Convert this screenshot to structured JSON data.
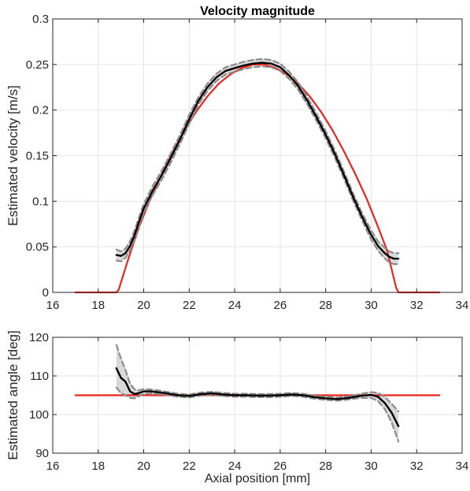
{
  "chart_data": [
    {
      "type": "line",
      "title": "Velocity magnitude",
      "xlabel": "",
      "ylabel": "Estimated velocity [m/s]",
      "xlim": [
        16,
        34
      ],
      "ylim": [
        0,
        0.3
      ],
      "xticks": [
        16,
        18,
        20,
        22,
        24,
        26,
        28,
        30,
        32,
        34
      ],
      "yticks": [
        0,
        0.05,
        0.1,
        0.15,
        0.2,
        0.25,
        0.3
      ],
      "xtick_labels": [
        "16",
        "18",
        "20",
        "22",
        "24",
        "26",
        "28",
        "30",
        "32",
        "34"
      ],
      "ytick_labels": [
        "0",
        "0.05",
        "0.1",
        "0.15",
        "0.2",
        "0.25",
        "0.3"
      ],
      "grid": true,
      "colors": {
        "reference": "#e8251e",
        "estimate": "#000000",
        "bounds": "#8c8c8c",
        "band": "#d9d9d9"
      },
      "series": [
        {
          "role": "reference",
          "x": [
            17,
            18.8,
            18.9,
            19.3,
            19.8,
            20.3,
            20.8,
            21.3,
            21.8,
            22.3,
            22.8,
            23.3,
            23.8,
            24.3,
            24.8,
            25.3,
            25.8,
            26.3,
            26.8,
            27.3,
            27.8,
            28.3,
            28.8,
            29.3,
            29.8,
            30.3,
            30.7,
            31.1,
            31.2,
            33
          ],
          "y": [
            0,
            0,
            0.003,
            0.035,
            0.072,
            0.103,
            0.13,
            0.155,
            0.178,
            0.198,
            0.215,
            0.229,
            0.239,
            0.246,
            0.25,
            0.25,
            0.246,
            0.239,
            0.229,
            0.215,
            0.198,
            0.178,
            0.155,
            0.13,
            0.103,
            0.072,
            0.046,
            0.005,
            0,
            0
          ]
        },
        {
          "role": "estimate",
          "x": [
            18.8,
            19.0,
            19.2,
            19.4,
            19.6,
            19.8,
            20.0,
            20.4,
            20.8,
            21.2,
            21.6,
            22.0,
            22.4,
            22.8,
            23.2,
            23.6,
            24.0,
            24.4,
            24.8,
            25.2,
            25.6,
            26.0,
            26.4,
            26.8,
            27.2,
            27.6,
            28.0,
            28.4,
            28.8,
            29.2,
            29.6,
            30.0,
            30.3,
            30.6,
            30.8,
            31.0,
            31.2
          ],
          "y": [
            0.041,
            0.04,
            0.043,
            0.051,
            0.063,
            0.078,
            0.092,
            0.112,
            0.129,
            0.148,
            0.168,
            0.19,
            0.21,
            0.225,
            0.236,
            0.243,
            0.246,
            0.249,
            0.251,
            0.252,
            0.251,
            0.247,
            0.238,
            0.226,
            0.21,
            0.192,
            0.173,
            0.152,
            0.129,
            0.105,
            0.083,
            0.063,
            0.051,
            0.043,
            0.039,
            0.037,
            0.037
          ]
        },
        {
          "role": "upper-bound",
          "x": [
            18.8,
            19.0,
            19.2,
            19.4,
            19.6,
            19.8,
            20.0,
            20.4,
            20.8,
            21.2,
            21.6,
            22.0,
            22.4,
            22.8,
            23.2,
            23.6,
            24.0,
            24.4,
            24.8,
            25.2,
            25.6,
            26.0,
            26.4,
            26.8,
            27.2,
            27.6,
            28.0,
            28.4,
            28.8,
            29.2,
            29.6,
            30.0,
            30.3,
            30.6,
            30.8,
            31.0,
            31.2
          ],
          "y": [
            0.047,
            0.045,
            0.048,
            0.056,
            0.068,
            0.083,
            0.097,
            0.117,
            0.134,
            0.153,
            0.173,
            0.195,
            0.214,
            0.229,
            0.24,
            0.247,
            0.25,
            0.253,
            0.255,
            0.256,
            0.255,
            0.251,
            0.242,
            0.23,
            0.214,
            0.196,
            0.177,
            0.156,
            0.133,
            0.109,
            0.087,
            0.068,
            0.056,
            0.049,
            0.045,
            0.043,
            0.043
          ]
        },
        {
          "role": "lower-bound",
          "x": [
            18.8,
            19.0,
            19.2,
            19.4,
            19.6,
            19.8,
            20.0,
            20.4,
            20.8,
            21.2,
            21.6,
            22.0,
            22.4,
            22.8,
            23.2,
            23.6,
            24.0,
            24.4,
            24.8,
            25.2,
            25.6,
            26.0,
            26.4,
            26.8,
            27.2,
            27.6,
            28.0,
            28.4,
            28.8,
            29.2,
            29.6,
            30.0,
            30.3,
            30.6,
            30.8,
            31.0,
            31.2
          ],
          "y": [
            0.035,
            0.034,
            0.038,
            0.046,
            0.058,
            0.073,
            0.087,
            0.107,
            0.124,
            0.143,
            0.163,
            0.185,
            0.206,
            0.221,
            0.232,
            0.239,
            0.242,
            0.245,
            0.247,
            0.248,
            0.247,
            0.243,
            0.234,
            0.222,
            0.206,
            0.188,
            0.169,
            0.148,
            0.125,
            0.101,
            0.079,
            0.058,
            0.046,
            0.037,
            0.033,
            0.031,
            0.031
          ]
        }
      ]
    },
    {
      "type": "line",
      "title": "",
      "xlabel": "Axial position [mm]",
      "ylabel": "Estimated angle [deg]",
      "xlim": [
        16,
        34
      ],
      "ylim": [
        90,
        120
      ],
      "xticks": [
        16,
        18,
        20,
        22,
        24,
        26,
        28,
        30,
        32,
        34
      ],
      "yticks": [
        90,
        100,
        110,
        120
      ],
      "xtick_labels": [
        "16",
        "18",
        "20",
        "22",
        "24",
        "26",
        "28",
        "30",
        "32",
        "34"
      ],
      "ytick_labels": [
        "90",
        "100",
        "110",
        "120"
      ],
      "grid": true,
      "colors": {
        "reference": "#e8251e",
        "estimate": "#000000",
        "bounds": "#8c8c8c",
        "band": "#d9d9d9"
      },
      "series": [
        {
          "role": "reference",
          "x": [
            17,
            33
          ],
          "y": [
            105,
            105
          ]
        },
        {
          "role": "estimate",
          "x": [
            18.8,
            19.0,
            19.2,
            19.4,
            19.6,
            19.8,
            20.0,
            20.3,
            20.6,
            21.0,
            21.5,
            22.0,
            22.5,
            23.0,
            23.5,
            24.0,
            24.5,
            25.0,
            25.5,
            26.0,
            26.5,
            27.0,
            27.5,
            28.0,
            28.5,
            29.0,
            29.5,
            30.0,
            30.3,
            30.6,
            30.9,
            31.2
          ],
          "y": [
            112,
            109.5,
            108.5,
            106.0,
            105.3,
            105.6,
            106.0,
            106.0,
            105.8,
            105.5,
            105.0,
            104.8,
            105.3,
            105.5,
            105.2,
            105.0,
            105.0,
            104.9,
            104.9,
            105.0,
            105.2,
            105.0,
            104.5,
            104.2,
            104.0,
            104.3,
            104.8,
            105.1,
            104.6,
            103.0,
            100.5,
            97.0
          ]
        },
        {
          "role": "upper-bound",
          "x": [
            18.8,
            19.0,
            19.2,
            19.4,
            19.6,
            19.8,
            20.0,
            20.3,
            20.6,
            21.0,
            21.5,
            22.0,
            22.5,
            23.0,
            23.5,
            24.0,
            24.5,
            25.0,
            25.5,
            26.0,
            26.5,
            27.0,
            27.5,
            28.0,
            28.5,
            29.0,
            29.5,
            30.0,
            30.3,
            30.6,
            30.9,
            31.2
          ],
          "y": [
            118,
            114.5,
            111.5,
            108.0,
            106.5,
            106.3,
            106.6,
            106.5,
            106.3,
            105.9,
            105.4,
            105.2,
            105.7,
            105.9,
            105.6,
            105.4,
            105.4,
            105.3,
            105.3,
            105.4,
            105.6,
            105.4,
            104.9,
            104.6,
            104.4,
            104.7,
            105.3,
            105.8,
            105.6,
            104.6,
            102.8,
            100.8
          ]
        },
        {
          "role": "lower-bound",
          "x": [
            18.8,
            19.0,
            19.2,
            19.4,
            19.6,
            19.8,
            20.0,
            20.3,
            20.6,
            21.0,
            21.5,
            22.0,
            22.5,
            23.0,
            23.5,
            24.0,
            24.5,
            25.0,
            25.5,
            26.0,
            26.5,
            27.0,
            27.5,
            28.0,
            28.5,
            29.0,
            29.5,
            30.0,
            30.3,
            30.6,
            30.9,
            31.2
          ],
          "y": [
            107,
            105.5,
            105.0,
            104.3,
            104.2,
            104.8,
            105.3,
            105.5,
            105.3,
            105.1,
            104.6,
            104.4,
            104.9,
            105.1,
            104.8,
            104.6,
            104.6,
            104.5,
            104.5,
            104.6,
            104.8,
            104.6,
            104.1,
            103.8,
            103.6,
            103.9,
            104.3,
            104.3,
            103.5,
            101.4,
            98.0,
            93.0
          ]
        }
      ]
    }
  ]
}
